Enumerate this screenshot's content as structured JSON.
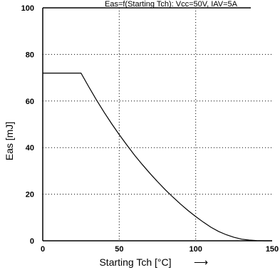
{
  "chart_data": {
    "type": "line",
    "title": "Eas=f(Starting Tch): Vcc=50V, IAV=5A",
    "xlabel": "Starting Tch [°C]",
    "xlabel_arrow": "⟶",
    "ylabel": "Eas [mJ]",
    "xlim": [
      0,
      150
    ],
    "ylim": [
      0,
      100
    ],
    "x_ticks": [
      0,
      50,
      100,
      150
    ],
    "y_ticks": [
      0,
      20,
      40,
      60,
      80,
      100
    ],
    "grid": true,
    "legend": "none",
    "series": [
      {
        "x": [
          0,
          5,
          10,
          15,
          20,
          25,
          30,
          35,
          40,
          45,
          50,
          55,
          60,
          65,
          70,
          75,
          80,
          85,
          90,
          95,
          100,
          105,
          110,
          115,
          120,
          125,
          130,
          135,
          140,
          145,
          150
        ],
        "y": [
          72,
          72,
          72,
          72,
          72,
          72,
          66.2,
          60.6,
          55.3,
          50.3,
          45.6,
          41.1,
          36.8,
          32.8,
          29.0,
          25.4,
          22.0,
          18.8,
          15.8,
          13.0,
          10.4,
          8.0,
          5.8,
          4.0,
          2.6,
          1.5,
          0.7,
          0.3,
          0.1,
          0.0,
          0.0
        ],
        "color": "#000000"
      }
    ]
  }
}
